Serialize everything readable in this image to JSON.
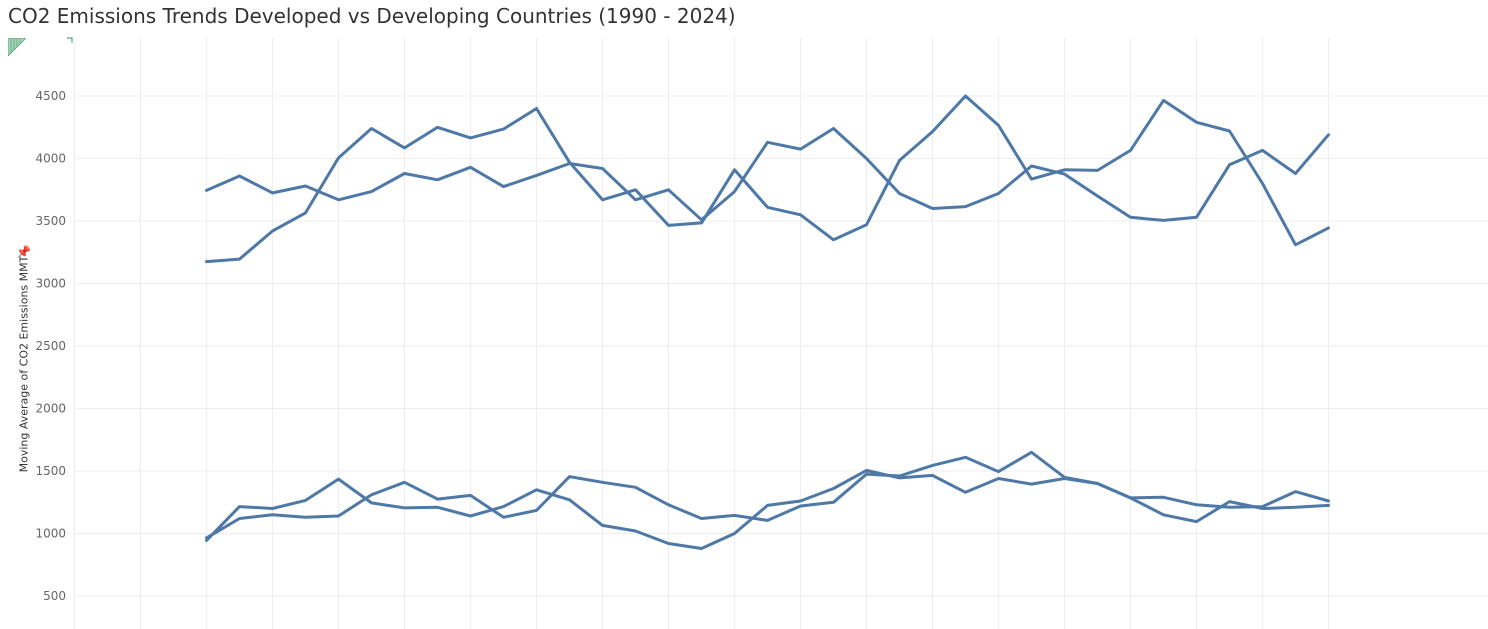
{
  "title": "CO2 Emissions Trends Developed vs Developing Countries (1990 - 2024)",
  "icons": {
    "pin": "pin-icon",
    "corner": "sheet-corner-icon"
  },
  "colors": {
    "line": "#4e79a7",
    "grid": "#eeeeee",
    "text": "#333333"
  },
  "chart_data": {
    "type": "line",
    "title": "CO2 Emissions Trends Developed vs Developing Countries (1990 - 2024)",
    "ylabel": "Moving Average of CO2 Emissions MMT",
    "xlabel": "",
    "ylim": [
      250,
      4900
    ],
    "yticks": [
      500,
      1000,
      1500,
      2000,
      2500,
      3000,
      3500,
      4000,
      4500
    ],
    "xrange": [
      1986,
      2024
    ],
    "grid": true,
    "series": [
      {
        "x": [
          1990,
          1991,
          1992,
          1993,
          1994,
          1995,
          1996,
          1997,
          1998,
          1999,
          2000,
          2001,
          2002,
          2003,
          2004,
          2005,
          2006,
          2007,
          2008,
          2009,
          2010,
          2011,
          2012,
          2013,
          2014,
          2015,
          2016,
          2017,
          2018,
          2019,
          2020,
          2021,
          2022,
          2023,
          2024
        ],
        "values": [
          3745,
          3860,
          3725,
          3780,
          3670,
          3735,
          3880,
          3830,
          3930,
          3775,
          3865,
          3960,
          3920,
          3670,
          3750,
          3510,
          3735,
          4130,
          4075,
          4240,
          4000,
          3720,
          3600,
          3615,
          3720,
          3940,
          3875,
          3700,
          3530,
          3505,
          3530,
          3950,
          4065,
          3880,
          4190
        ]
      },
      {
        "x": [
          1990,
          1991,
          1992,
          1993,
          1994,
          1995,
          1996,
          1997,
          1998,
          1999,
          2000,
          2001,
          2002,
          2003,
          2004,
          2005,
          2006,
          2007,
          2008,
          2009,
          2010,
          2011,
          2012,
          2013,
          2014,
          2015,
          2016,
          2017,
          2018,
          2019,
          2020,
          2021,
          2022,
          2023,
          2024
        ],
        "values": [
          3175,
          3195,
          3420,
          3565,
          4005,
          4240,
          4085,
          4250,
          4165,
          4235,
          4400,
          3970,
          3670,
          3750,
          3465,
          3485,
          3910,
          3610,
          3550,
          3350,
          3470,
          3985,
          4215,
          4500,
          4265,
          3835,
          3910,
          3905,
          4065,
          4465,
          4290,
          4220,
          3800,
          3310,
          3445
        ]
      },
      {
        "x": [
          1990,
          1991,
          1992,
          1993,
          1994,
          1995,
          1996,
          1997,
          1998,
          1999,
          2000,
          2001,
          2002,
          2003,
          2004,
          2005,
          2006,
          2007,
          2008,
          2009,
          2010,
          2011,
          2012,
          2013,
          2014,
          2015,
          2016,
          2017,
          2018,
          2019,
          2020,
          2021,
          2022,
          2023,
          2024
        ],
        "values": [
          945,
          1215,
          1200,
          1265,
          1435,
          1245,
          1205,
          1210,
          1140,
          1215,
          1350,
          1270,
          1065,
          1020,
          920,
          880,
          1000,
          1225,
          1260,
          1360,
          1505,
          1445,
          1465,
          1330,
          1440,
          1395,
          1440,
          1400,
          1285,
          1290,
          1230,
          1210,
          1215,
          1335,
          1260
        ]
      },
      {
        "x": [
          1990,
          1991,
          1992,
          1993,
          1994,
          1995,
          1996,
          1997,
          1998,
          1999,
          2000,
          2001,
          2002,
          2003,
          2004,
          2005,
          2006,
          2007,
          2008,
          2009,
          2010,
          2011,
          2012,
          2013,
          2014,
          2015,
          2016,
          2017,
          2018,
          2019,
          2020,
          2021,
          2022,
          2023,
          2024
        ],
        "values": [
          965,
          1120,
          1150,
          1130,
          1140,
          1310,
          1410,
          1275,
          1305,
          1130,
          1185,
          1455,
          1410,
          1370,
          1230,
          1120,
          1145,
          1105,
          1220,
          1250,
          1475,
          1460,
          1545,
          1610,
          1495,
          1650,
          1450,
          1400,
          1285,
          1150,
          1095,
          1255,
          1200,
          1210,
          1225
        ]
      }
    ]
  }
}
